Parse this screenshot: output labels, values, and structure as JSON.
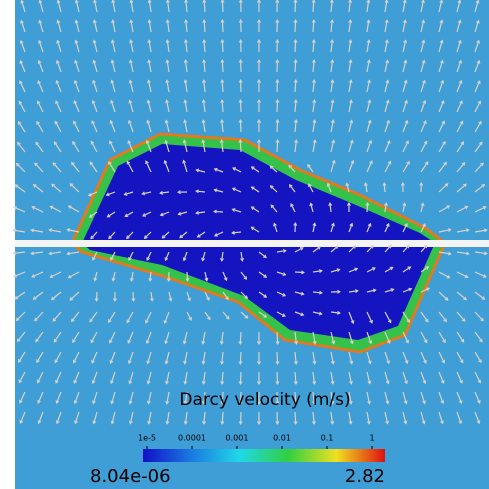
{
  "legend": {
    "title": "Darcy velocity (m/s)",
    "ticks": [
      "1e-5",
      "0.0001",
      "0.001",
      "0.01",
      "0.1",
      "1"
    ],
    "min_label": "8.04e-06",
    "max_label": "2.82"
  }
}
